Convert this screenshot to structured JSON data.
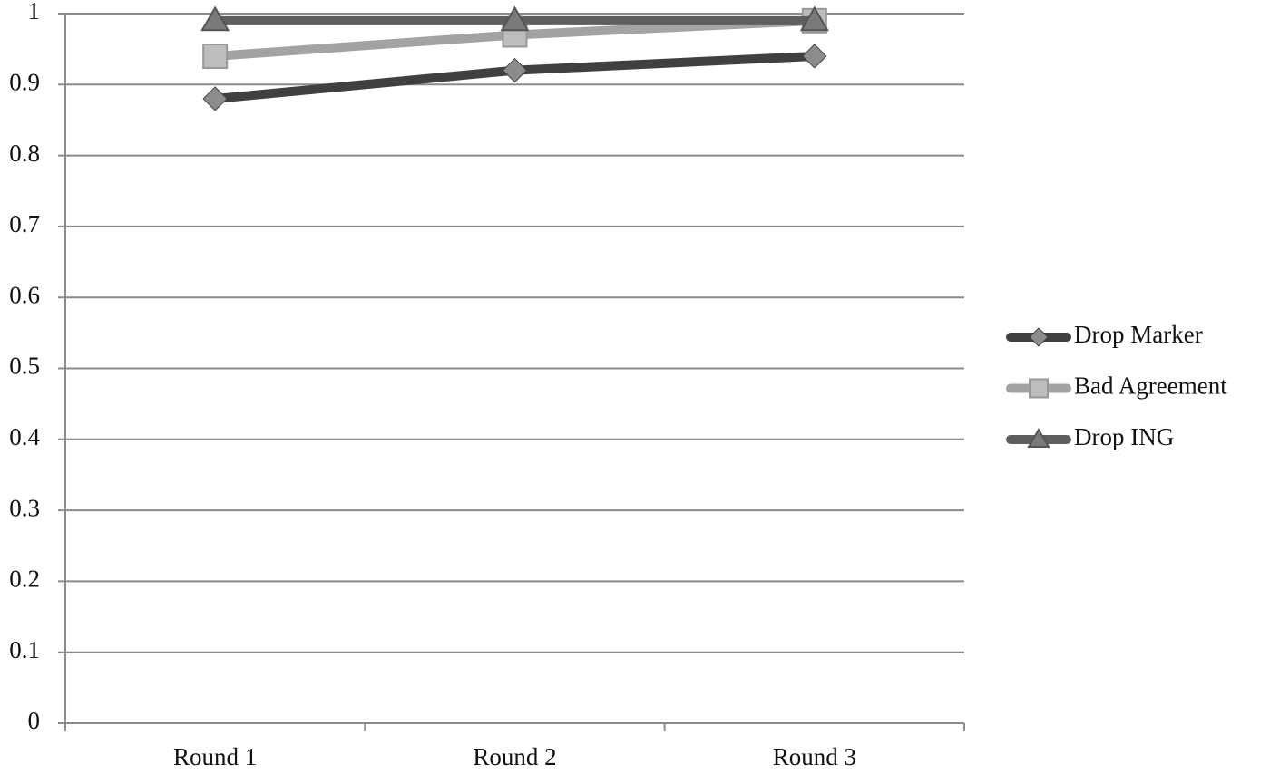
{
  "chart_data": {
    "type": "line",
    "categories": [
      "Round 1",
      "Round 2",
      "Round 3"
    ],
    "series": [
      {
        "name": "Drop Marker",
        "color": "#404040",
        "marker": "diamond",
        "values": [
          0.88,
          0.92,
          0.94
        ]
      },
      {
        "name": "Bad Agreement",
        "color": "#a3a3a3",
        "marker": "square",
        "values": [
          0.94,
          0.97,
          0.99
        ]
      },
      {
        "name": "Drop ING",
        "color": "#5e5e5e",
        "marker": "triangle",
        "values": [
          0.99,
          0.99,
          0.99
        ]
      }
    ],
    "ylim": [
      0,
      1
    ],
    "yticks": [
      0,
      0.1,
      0.2,
      0.3,
      0.4,
      0.5,
      0.6,
      0.7,
      0.8,
      0.9,
      1
    ],
    "grid": true,
    "legend": "right"
  }
}
